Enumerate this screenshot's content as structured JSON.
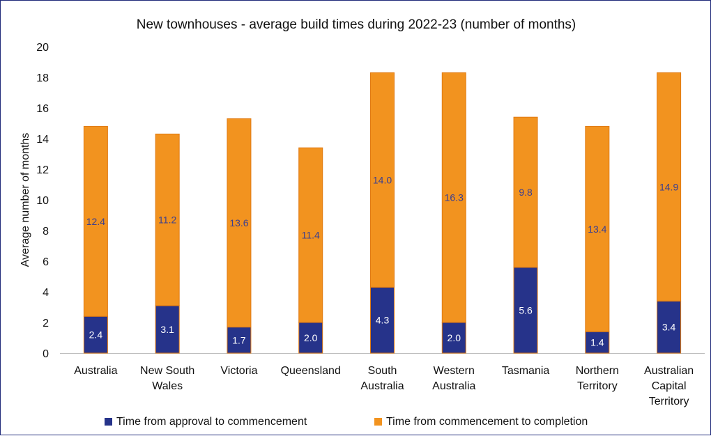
{
  "chart_data": {
    "type": "bar",
    "stacked": true,
    "title": "New townhouses - average build times during 2022-23 (number of months)",
    "ylabel": "Average number of months",
    "xlabel": "",
    "ylim": [
      0,
      20
    ],
    "yticks": [
      0,
      2,
      4,
      6,
      8,
      10,
      12,
      14,
      16,
      18,
      20
    ],
    "grid": false,
    "legend_position": "bottom",
    "categories": [
      [
        "Australia"
      ],
      [
        "New South",
        "Wales"
      ],
      [
        "Victoria"
      ],
      [
        "Queensland"
      ],
      [
        "South",
        "Australia"
      ],
      [
        "Western",
        "Australia"
      ],
      [
        "Tasmania"
      ],
      [
        "Northern",
        "Territory"
      ],
      [
        "Australian",
        "Capital",
        "Territory"
      ]
    ],
    "series": [
      {
        "name": "Time from approval to commencement",
        "color": "#26338a",
        "label_color": "#ffffff",
        "values": [
          2.4,
          3.1,
          1.7,
          2.0,
          4.3,
          2.0,
          5.6,
          1.4,
          3.4
        ],
        "labels": [
          "2.4",
          "3.1",
          "1.7",
          "2.0",
          "4.3",
          "2.0",
          "5.6",
          "1.4",
          "3.4"
        ]
      },
      {
        "name": "Time from commencement to completion",
        "color": "#f2931f",
        "label_color": "#3b3f8f",
        "values": [
          12.4,
          11.2,
          13.6,
          11.4,
          14.0,
          16.3,
          9.8,
          13.4,
          14.9
        ],
        "labels": [
          "12.4",
          "11.2",
          "13.6",
          "11.4",
          "14.0",
          "16.3",
          "9.8",
          "13.4",
          "14.9"
        ]
      }
    ]
  }
}
